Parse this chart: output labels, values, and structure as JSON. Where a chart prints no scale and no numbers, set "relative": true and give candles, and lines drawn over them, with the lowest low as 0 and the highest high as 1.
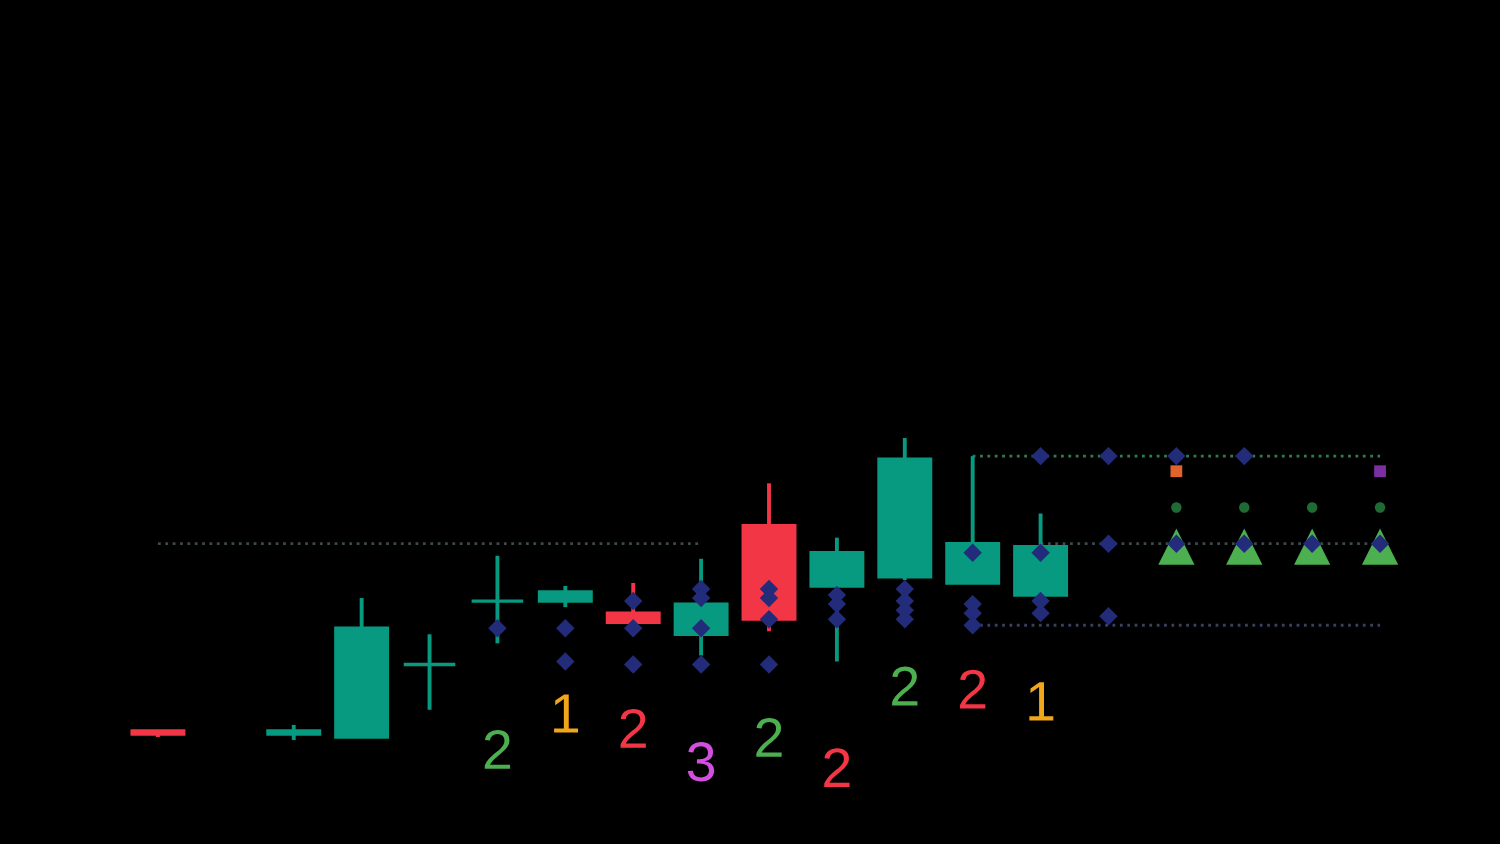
{
  "chart_data": {
    "type": "candlestick",
    "relative": true,
    "categories": [
      null,
      null,
      null,
      null,
      null,
      "2",
      "1",
      "2",
      "3",
      "2",
      "2",
      "2",
      "2",
      "1",
      null,
      null,
      null,
      null,
      null
    ],
    "ohlc": [
      [
        0.03,
        0.03,
        0.01,
        0.02
      ],
      null,
      [
        0.02,
        0.05,
        0.0,
        0.03
      ],
      [
        0.01,
        0.47,
        0.01,
        0.37
      ],
      [
        0.25,
        0.35,
        0.1,
        0.25
      ],
      [
        0.46,
        0.61,
        0.32,
        0.46
      ],
      [
        0.46,
        0.51,
        0.44,
        0.49
      ],
      [
        0.42,
        0.52,
        0.39,
        0.39
      ],
      [
        0.35,
        0.6,
        0.28,
        0.45
      ],
      [
        0.71,
        0.85,
        0.36,
        0.4
      ],
      [
        0.51,
        0.67,
        0.26,
        0.62
      ],
      [
        0.54,
        1.0,
        0.53,
        0.93
      ],
      [
        0.52,
        0.94,
        0.52,
        0.65
      ],
      [
        0.48,
        0.75,
        0.48,
        0.64
      ],
      null,
      null,
      null,
      null,
      null
    ],
    "colors": [
      "#f23645",
      null,
      "#089981",
      "#089981",
      "#089981",
      "#089981",
      "#089981",
      "#f23645",
      "#089981",
      "#f23645",
      "#089981",
      "#089981",
      "#089981",
      "#089981",
      null,
      null,
      null,
      null,
      null
    ],
    "series": [
      {
        "type": "line",
        "line_style": "dotted",
        "color": "#3b4a4f",
        "values": [
          0.65,
          0.65,
          0.65,
          0.65,
          0.65,
          0.65,
          0.65,
          0.65,
          0.65,
          null,
          null,
          null,
          null,
          0.65,
          0.65,
          0.65,
          0.65,
          0.65,
          0.65
        ]
      },
      {
        "type": "line",
        "line_style": "dotted",
        "color": "#2e7d4f",
        "values": [
          null,
          null,
          null,
          null,
          null,
          null,
          null,
          null,
          null,
          null,
          null,
          null,
          0.94,
          0.94,
          0.94,
          0.94,
          0.94,
          0.94,
          0.94
        ]
      },
      {
        "type": "line",
        "line_style": "dotted",
        "color": "#3a3f5c",
        "values": [
          null,
          null,
          null,
          null,
          null,
          null,
          null,
          null,
          null,
          null,
          null,
          null,
          0.38,
          0.38,
          0.38,
          0.38,
          0.38,
          0.38,
          0.38
        ]
      },
      {
        "type": "scatter",
        "marker": "triangle",
        "color": "#4caf50",
        "values": [
          null,
          null,
          null,
          null,
          null,
          null,
          null,
          null,
          null,
          null,
          null,
          null,
          null,
          null,
          null,
          0.64,
          0.64,
          0.64,
          0.64
        ]
      },
      {
        "type": "scatter",
        "marker": "diamond",
        "color": "#232c7a",
        "values": [
          null,
          null,
          null,
          null,
          null,
          null,
          null,
          null,
          null,
          null,
          null,
          null,
          null,
          0.94,
          0.94,
          0.94,
          0.94,
          null,
          null
        ]
      },
      {
        "type": "scatter",
        "marker": "diamond",
        "color": "#232c7a",
        "values": [
          null,
          null,
          null,
          null,
          null,
          null,
          null,
          null,
          null,
          null,
          null,
          null,
          0.62,
          0.62,
          0.65,
          0.65,
          0.65,
          0.65,
          0.65
        ]
      },
      {
        "type": "scatter",
        "marker": "diamond",
        "color": "#232c7a",
        "values": [
          null,
          null,
          null,
          null,
          null,
          null,
          null,
          0.46,
          0.5,
          0.5,
          0.48,
          0.5,
          0.45,
          0.46,
          null,
          null,
          null,
          null,
          null
        ]
      },
      {
        "type": "scatter",
        "marker": "diamond",
        "color": "#232c7a",
        "values": [
          null,
          null,
          null,
          null,
          null,
          null,
          null,
          null,
          0.47,
          0.47,
          0.45,
          0.46,
          0.42,
          0.42,
          0.41,
          null,
          null,
          null,
          null
        ]
      },
      {
        "type": "scatter",
        "marker": "diamond",
        "color": "#232c7a",
        "values": [
          null,
          null,
          null,
          null,
          null,
          0.37,
          0.37,
          0.37,
          0.37,
          0.4,
          0.4,
          0.43,
          0.38,
          null,
          null,
          null,
          null,
          null,
          null
        ]
      },
      {
        "type": "scatter",
        "marker": "diamond",
        "color": "#232c7a",
        "values": [
          null,
          null,
          null,
          null,
          null,
          null,
          0.26,
          0.25,
          0.25,
          0.25,
          null,
          0.4,
          null,
          null,
          null,
          null,
          null,
          null,
          null
        ]
      },
      {
        "type": "scatter",
        "marker": "circle",
        "color": "#1f6b34",
        "values": [
          null,
          null,
          null,
          null,
          null,
          null,
          null,
          null,
          null,
          null,
          null,
          null,
          null,
          null,
          null,
          0.77,
          0.77,
          0.77,
          0.77
        ]
      },
      {
        "type": "scatter",
        "marker": "square",
        "colors": [
          null,
          null,
          null,
          null,
          null,
          null,
          null,
          null,
          null,
          null,
          null,
          null,
          null,
          null,
          null,
          "#e0632a",
          null,
          null,
          "#7b2fa0"
        ],
        "values": [
          null,
          null,
          null,
          null,
          null,
          null,
          null,
          null,
          null,
          null,
          null,
          null,
          null,
          null,
          null,
          0.89,
          null,
          null,
          0.89
        ]
      }
    ]
  }
}
